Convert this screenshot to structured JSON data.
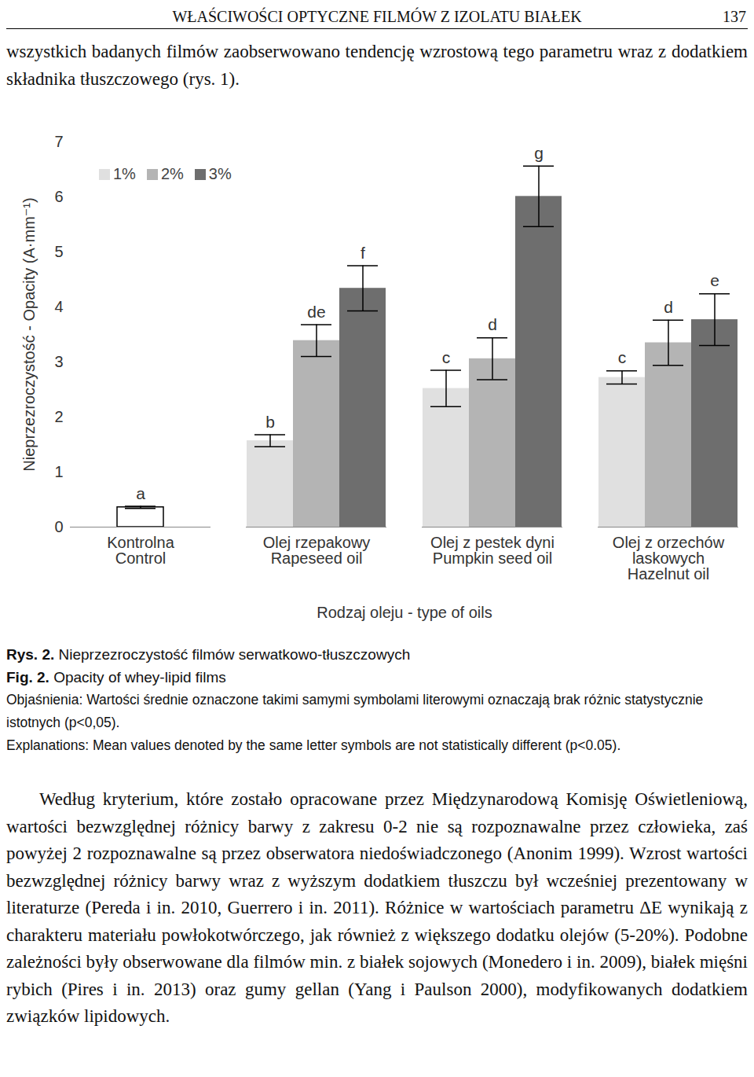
{
  "header": {
    "title": "WŁAŚCIWOŚCI OPTYCZNE FILMÓW Z IZOLATU BIAŁEK",
    "page": "137"
  },
  "intro": "wszystkich badanych filmów zaobserwowano tendencję wzrostową tego parametru wraz z dodatkiem składnika tłuszczowego (rys. 1).",
  "chart_data": {
    "type": "bar",
    "x_label": "Rodzaj oleju - type of oils",
    "y_label": "Nieprzezroczystość - Opacity (A·mm⁻¹)",
    "categories": [
      "Kontrolna\nControl",
      "Olej rzepakowy\nRapeseed oil",
      "Olej z pestek dyni\nPumpkin seed oil",
      "Olej z orzechów\nlaskowych\nHazelnut oil"
    ],
    "series": [
      {
        "name": "1%",
        "color": "#e0e0e0",
        "values": [
          null,
          1.57,
          2.52,
          2.72
        ],
        "errors": [
          null,
          0.11,
          0.33,
          0.12
        ],
        "annotations": [
          null,
          "b",
          "c",
          "c"
        ]
      },
      {
        "name": "2%",
        "color": "#b4b4b4",
        "colors": [
          "#ffffff",
          "#b4b4b4",
          "#b4b4b4",
          "#b4b4b4"
        ],
        "values": [
          0.36,
          3.39,
          3.06,
          3.35
        ],
        "errors": [
          0.02,
          0.29,
          0.38,
          0.41
        ],
        "annotations": [
          "a",
          "de",
          "d",
          "d"
        ]
      },
      {
        "name": "3%",
        "color": "#6e6e6e",
        "values": [
          null,
          4.34,
          6.01,
          3.77
        ],
        "errors": [
          null,
          0.41,
          0.55,
          0.47
        ],
        "annotations": [
          null,
          "f",
          "g",
          "e"
        ]
      }
    ],
    "ylim": [
      0,
      7
    ],
    "yticks": [
      0,
      1,
      2,
      3,
      4,
      5,
      6,
      7
    ],
    "grid": false,
    "legend": "top-left"
  },
  "captions": [
    {
      "label": "Rys. 2.",
      "text": "Nieprzezroczystość filmów serwatkowo-tłuszczowych"
    },
    {
      "label": "Fig. 2.",
      "text": "Opacity of whey-lipid films"
    }
  ],
  "explanations": [
    "Objaśnienia: Wartości średnie oznaczone takimi samymi symbolami literowymi oznaczają brak różnic statystycznie istotnych (p<0,05).",
    "Explanations: Mean values denoted by the same letter symbols are not statistically different (p<0.05)."
  ],
  "body": "Według kryterium, które zostało opracowane przez Międzynarodową Komisję Oświetleniową, wartości bezwzględnej różnicy barwy z zakresu 0-2 nie są rozpoznawalne przez człowieka, zaś powyżej 2 rozpoznawalne są przez obserwatora niedoświadczonego (Anonim 1999). Wzrost wartości bezwzględnej różnicy barwy wraz z wyższym dodatkiem tłuszczu był wcześniej prezentowany w literaturze (Pereda i in. 2010, Guerrero i in. 2011). Różnice w wartościach parametru ΔE wynikają z charakteru materiału powłokotwórczego, jak również z większego dodatku olejów (5-20%). Podobne zależności były obserwowane dla filmów min. z białek sojowych (Monedero i in. 2009), białek mięśni rybich (Pires i in. 2013) oraz gumy gellan (Yang i Paulson 2000), modyfikowanych dodatkiem związków lipidowych."
}
